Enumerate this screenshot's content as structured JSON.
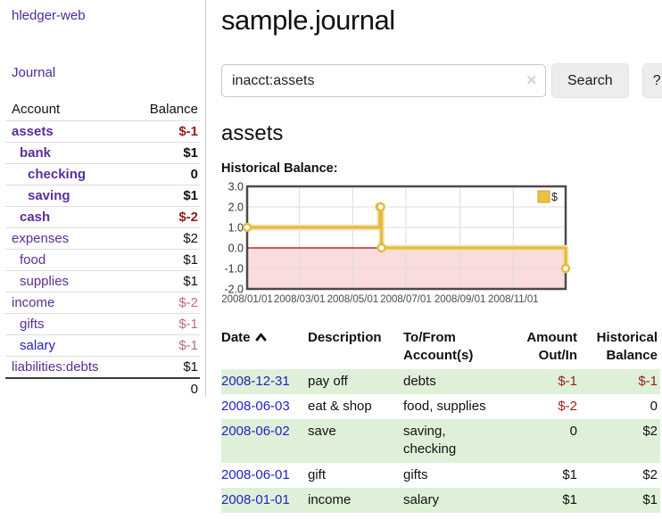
{
  "app": {
    "title": "hledger-web",
    "nav_journal": "Journal"
  },
  "colors": {
    "link_purple": "#4f2a9e",
    "link_blue": "#2222cc",
    "negative": "#951d1d",
    "negative_soft": "#bd6d77",
    "row_green": "#dff0d8",
    "chart_line_gold": "#e3bb3c",
    "chart_negative_region": "#fadcdc",
    "chart_zero_line": "#aa0000"
  },
  "sidebar": {
    "table": {
      "col_account": "Account",
      "col_balance": "Balance"
    },
    "accounts": [
      {
        "name": "assets",
        "depth": 1,
        "balance": "$-1",
        "emph": true,
        "balance_tone": "neg-strong"
      },
      {
        "name": "bank",
        "depth": 2,
        "balance": "$1",
        "emph": true,
        "balance_tone": "pos"
      },
      {
        "name": "checking",
        "depth": 3,
        "balance": "0",
        "emph": true,
        "balance_tone": "pos"
      },
      {
        "name": "saving",
        "depth": 3,
        "balance": "$1",
        "emph": true,
        "balance_tone": "pos"
      },
      {
        "name": "cash",
        "depth": 2,
        "balance": "$-2",
        "emph": true,
        "balance_tone": "neg-strong"
      },
      {
        "name": "expenses",
        "depth": 1,
        "balance": "$2",
        "emph": false,
        "balance_tone": "pos"
      },
      {
        "name": "food",
        "depth": 2,
        "balance": "$1",
        "emph": false,
        "balance_tone": "pos"
      },
      {
        "name": "supplies",
        "depth": 2,
        "balance": "$1",
        "emph": false,
        "balance_tone": "pos"
      },
      {
        "name": "income",
        "depth": 1,
        "balance": "$-2",
        "emph": false,
        "balance_tone": "neg-soft"
      },
      {
        "name": "gifts",
        "depth": 2,
        "balance": "$-1",
        "emph": false,
        "balance_tone": "neg-soft"
      },
      {
        "name": "salary",
        "depth": 2,
        "balance": "$-1",
        "emph": false,
        "balance_tone": "neg-soft",
        "link_tone": "blue"
      },
      {
        "name": "liabilities:debts",
        "depth": 1,
        "balance": "$1",
        "emph": false,
        "balance_tone": "pos"
      }
    ],
    "total": "0"
  },
  "header": {
    "title": "sample.journal"
  },
  "search": {
    "value": "inacct:assets",
    "clear_icon": "✕",
    "button": "Search",
    "help_button": "?"
  },
  "account_page": {
    "heading": "assets",
    "chart_label": "Historical Balance:"
  },
  "chart_data": {
    "type": "line",
    "style": "step-after",
    "legend": "$",
    "legend_position": "top-right",
    "grid": true,
    "x_range": [
      "2008-01-01",
      "2008-12-31"
    ],
    "ylim": [
      -2,
      3
    ],
    "y_ticks": [
      3,
      2,
      1,
      0,
      -1,
      -2
    ],
    "x_ticks": [
      "2008/01/01",
      "2008/03/01",
      "2008/05/01",
      "2008/07/01",
      "2008/09/01",
      "2008/11/01"
    ],
    "series": [
      {
        "name": "$",
        "points": [
          {
            "date": "2008-01-01",
            "value": 1
          },
          {
            "date": "2008-06-01",
            "value": 2
          },
          {
            "date": "2008-06-02",
            "value": 2
          },
          {
            "date": "2008-06-03",
            "value": 0
          },
          {
            "date": "2008-12-31",
            "value": -1
          }
        ]
      }
    ]
  },
  "register": {
    "columns": {
      "date": "Date",
      "description": "Description",
      "accounts": "To/From Account(s)",
      "amount": "Amount Out/In",
      "balance": "Historical Balance"
    },
    "rows": [
      {
        "date": "2008-12-31",
        "description": "pay off",
        "accounts": "debts",
        "amount": "$-1",
        "amount_neg": true,
        "balance": "$-1",
        "balance_neg": true
      },
      {
        "date": "2008-06-03",
        "description": "eat & shop",
        "accounts": "food, supplies",
        "amount": "$-2",
        "amount_neg": true,
        "balance": "0",
        "balance_neg": false
      },
      {
        "date": "2008-06-02",
        "description": "save",
        "accounts": "saving,\nchecking",
        "amount": "0",
        "amount_neg": false,
        "balance": "$2",
        "balance_neg": false
      },
      {
        "date": "2008-06-01",
        "description": "gift",
        "accounts": "gifts",
        "amount": "$1",
        "amount_neg": false,
        "balance": "$2",
        "balance_neg": false
      },
      {
        "date": "2008-01-01",
        "description": "income",
        "accounts": "salary",
        "amount": "$1",
        "amount_neg": false,
        "balance": "$1",
        "balance_neg": false
      }
    ]
  }
}
